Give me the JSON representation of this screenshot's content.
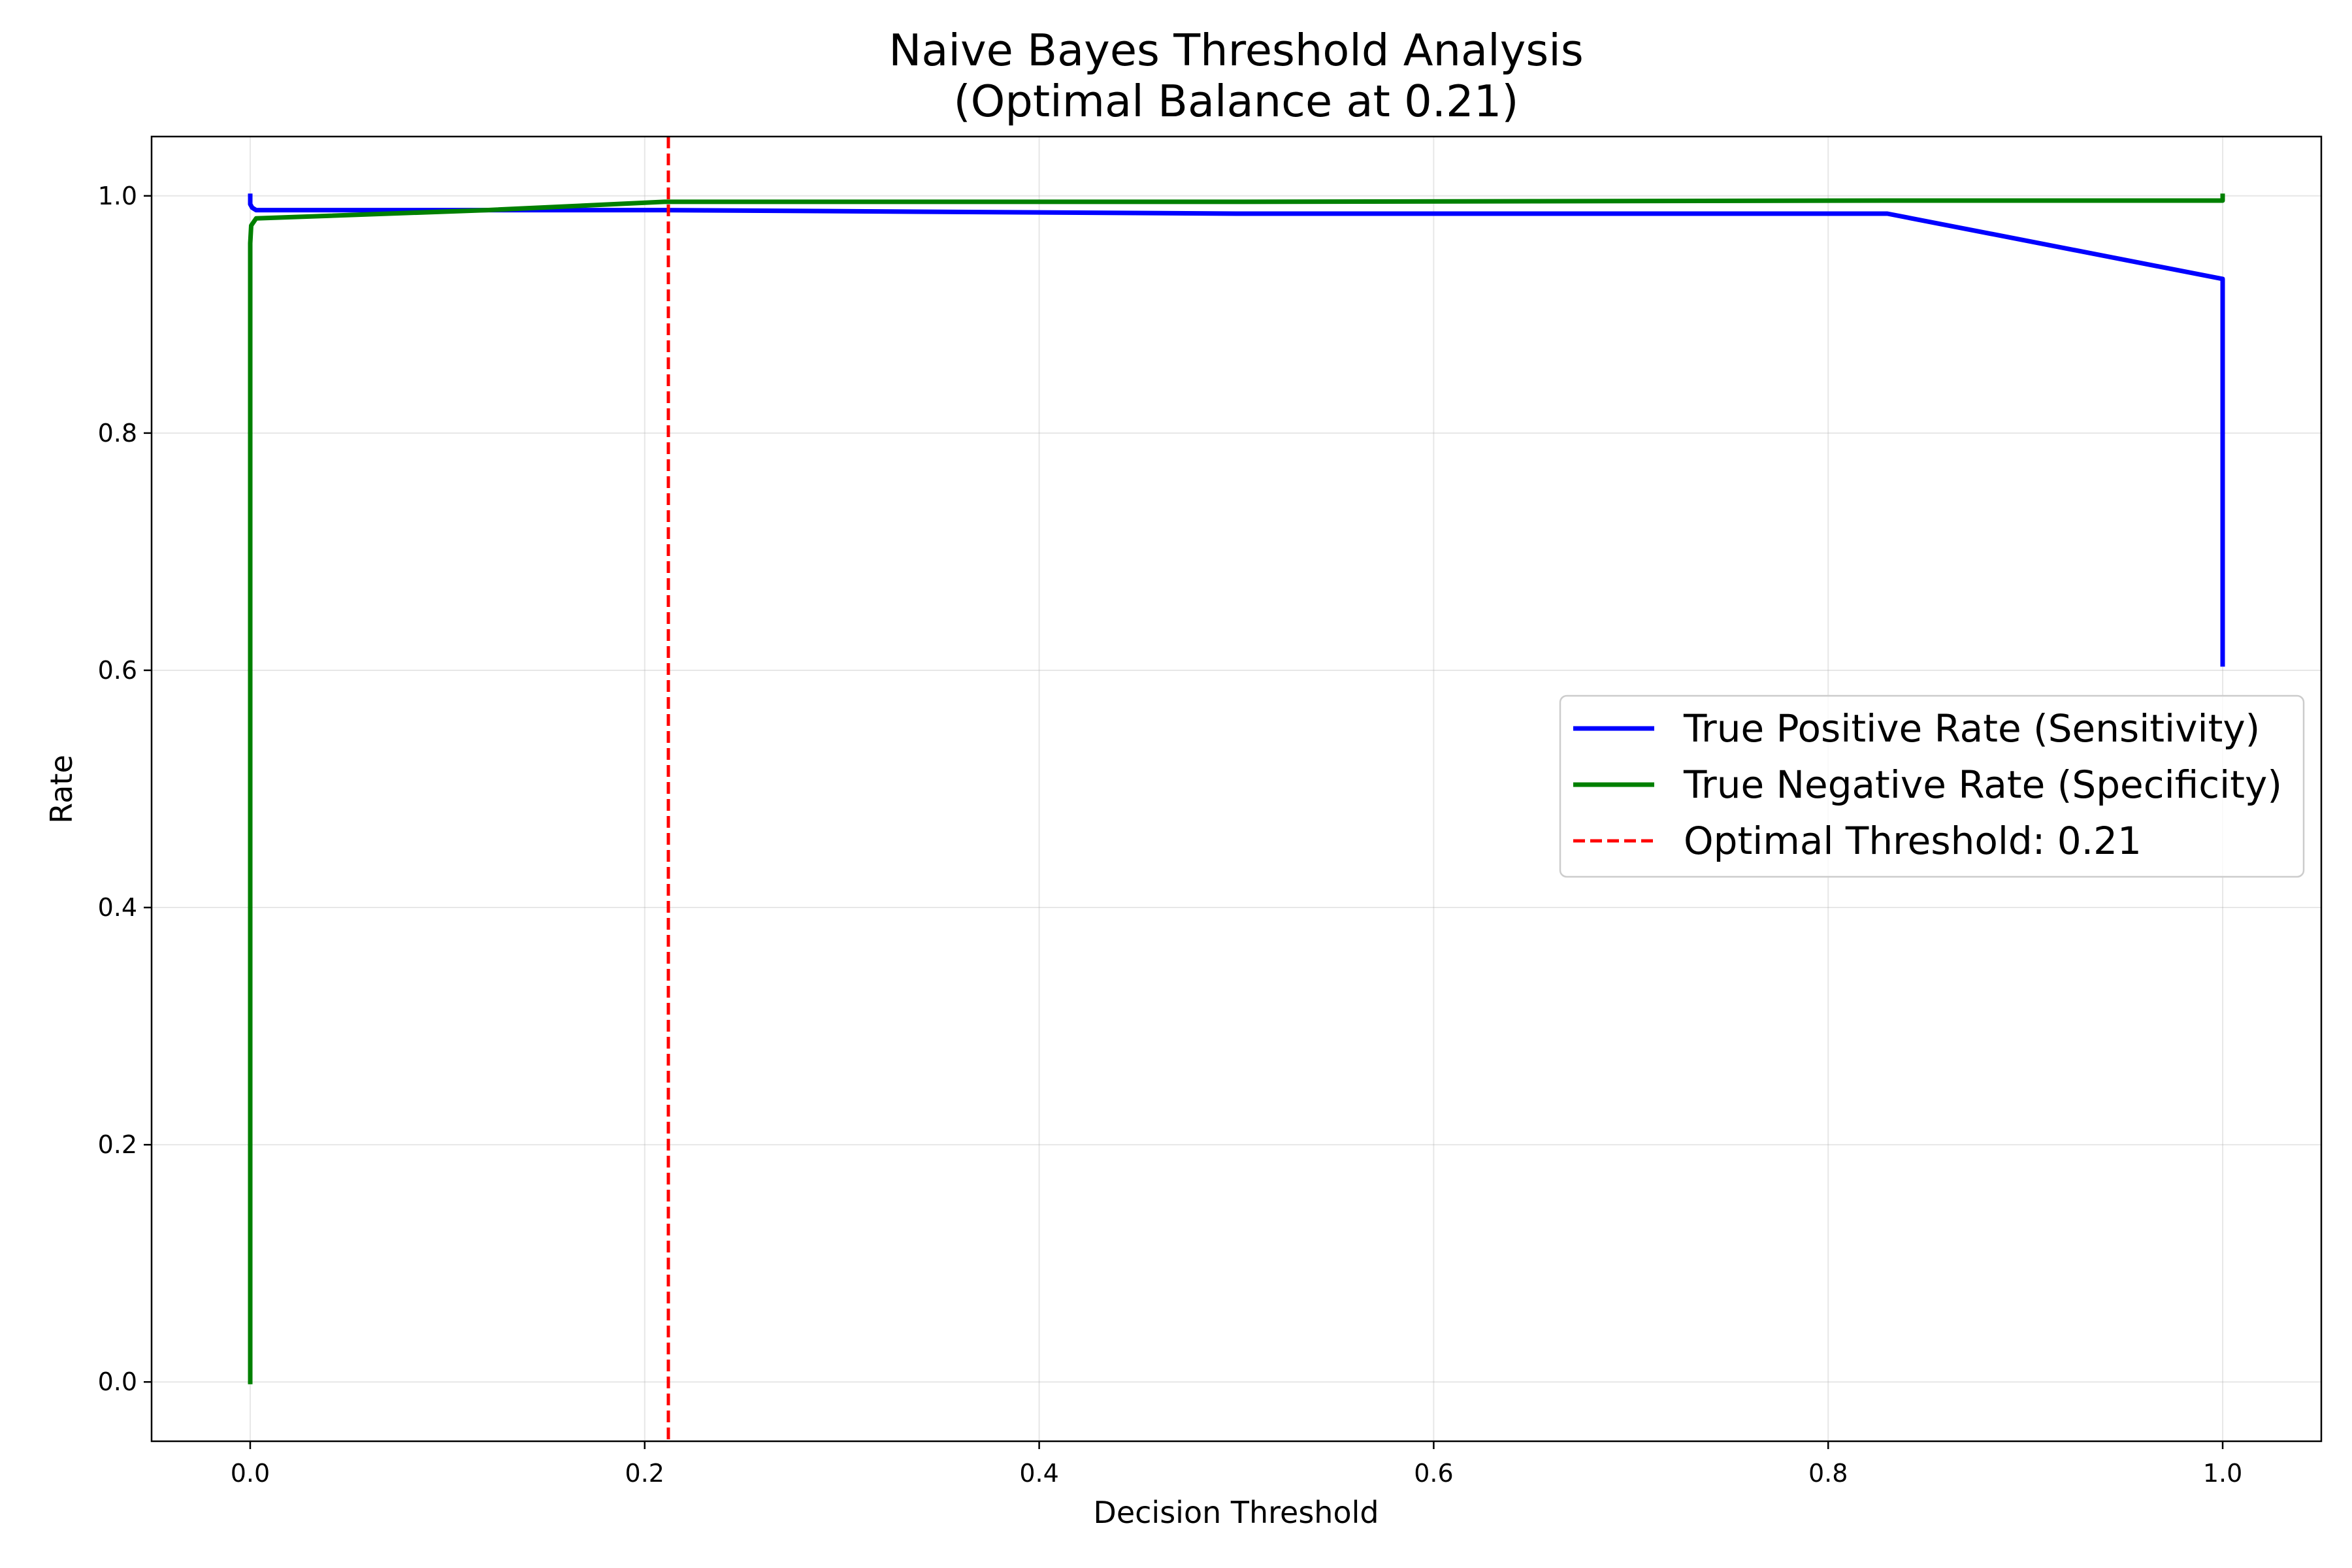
{
  "chart_data": {
    "type": "line",
    "title": "Naive Bayes Threshold Analysis",
    "subtitle": "(Optimal Balance at 0.21)",
    "xlabel": "Decision Threshold",
    "ylabel": "Rate",
    "xlim": [
      -0.05,
      1.05
    ],
    "ylim": [
      -0.05,
      1.05
    ],
    "xticks": [
      0.0,
      0.2,
      0.4,
      0.6,
      0.8,
      1.0
    ],
    "xtick_labels": [
      "0.0",
      "0.2",
      "0.4",
      "0.6",
      "0.8",
      "1.0"
    ],
    "yticks": [
      0.0,
      0.2,
      0.4,
      0.6,
      0.8,
      1.0
    ],
    "ytick_labels": [
      "0.0",
      "0.2",
      "0.4",
      "0.6",
      "0.8",
      "1.0"
    ],
    "grid": true,
    "legend_position": "center-right",
    "series": [
      {
        "name": "True Positive Rate (Sensitivity)",
        "color": "#0000ff",
        "style": "solid",
        "x": [
          0.0,
          0.0,
          0.001,
          0.003,
          0.21,
          0.5,
          0.83,
          1.0,
          1.0
        ],
        "y": [
          1.0,
          0.993,
          0.99,
          0.988,
          0.988,
          0.985,
          0.985,
          0.93,
          0.605
        ]
      },
      {
        "name": "True Negative Rate (Specificity)",
        "color": "#008000",
        "style": "solid",
        "x": [
          0.0,
          0.0,
          0.0005,
          0.003,
          0.12,
          0.21,
          0.5,
          0.83,
          1.0,
          1.0
        ],
        "y": [
          0.0,
          0.96,
          0.975,
          0.981,
          0.988,
          0.995,
          0.995,
          0.996,
          0.996,
          1.0
        ]
      }
    ],
    "vlines": [
      {
        "name": "Optimal Threshold: 0.21",
        "x": 0.212,
        "color": "#ff0000",
        "style": "dashed"
      }
    ]
  }
}
